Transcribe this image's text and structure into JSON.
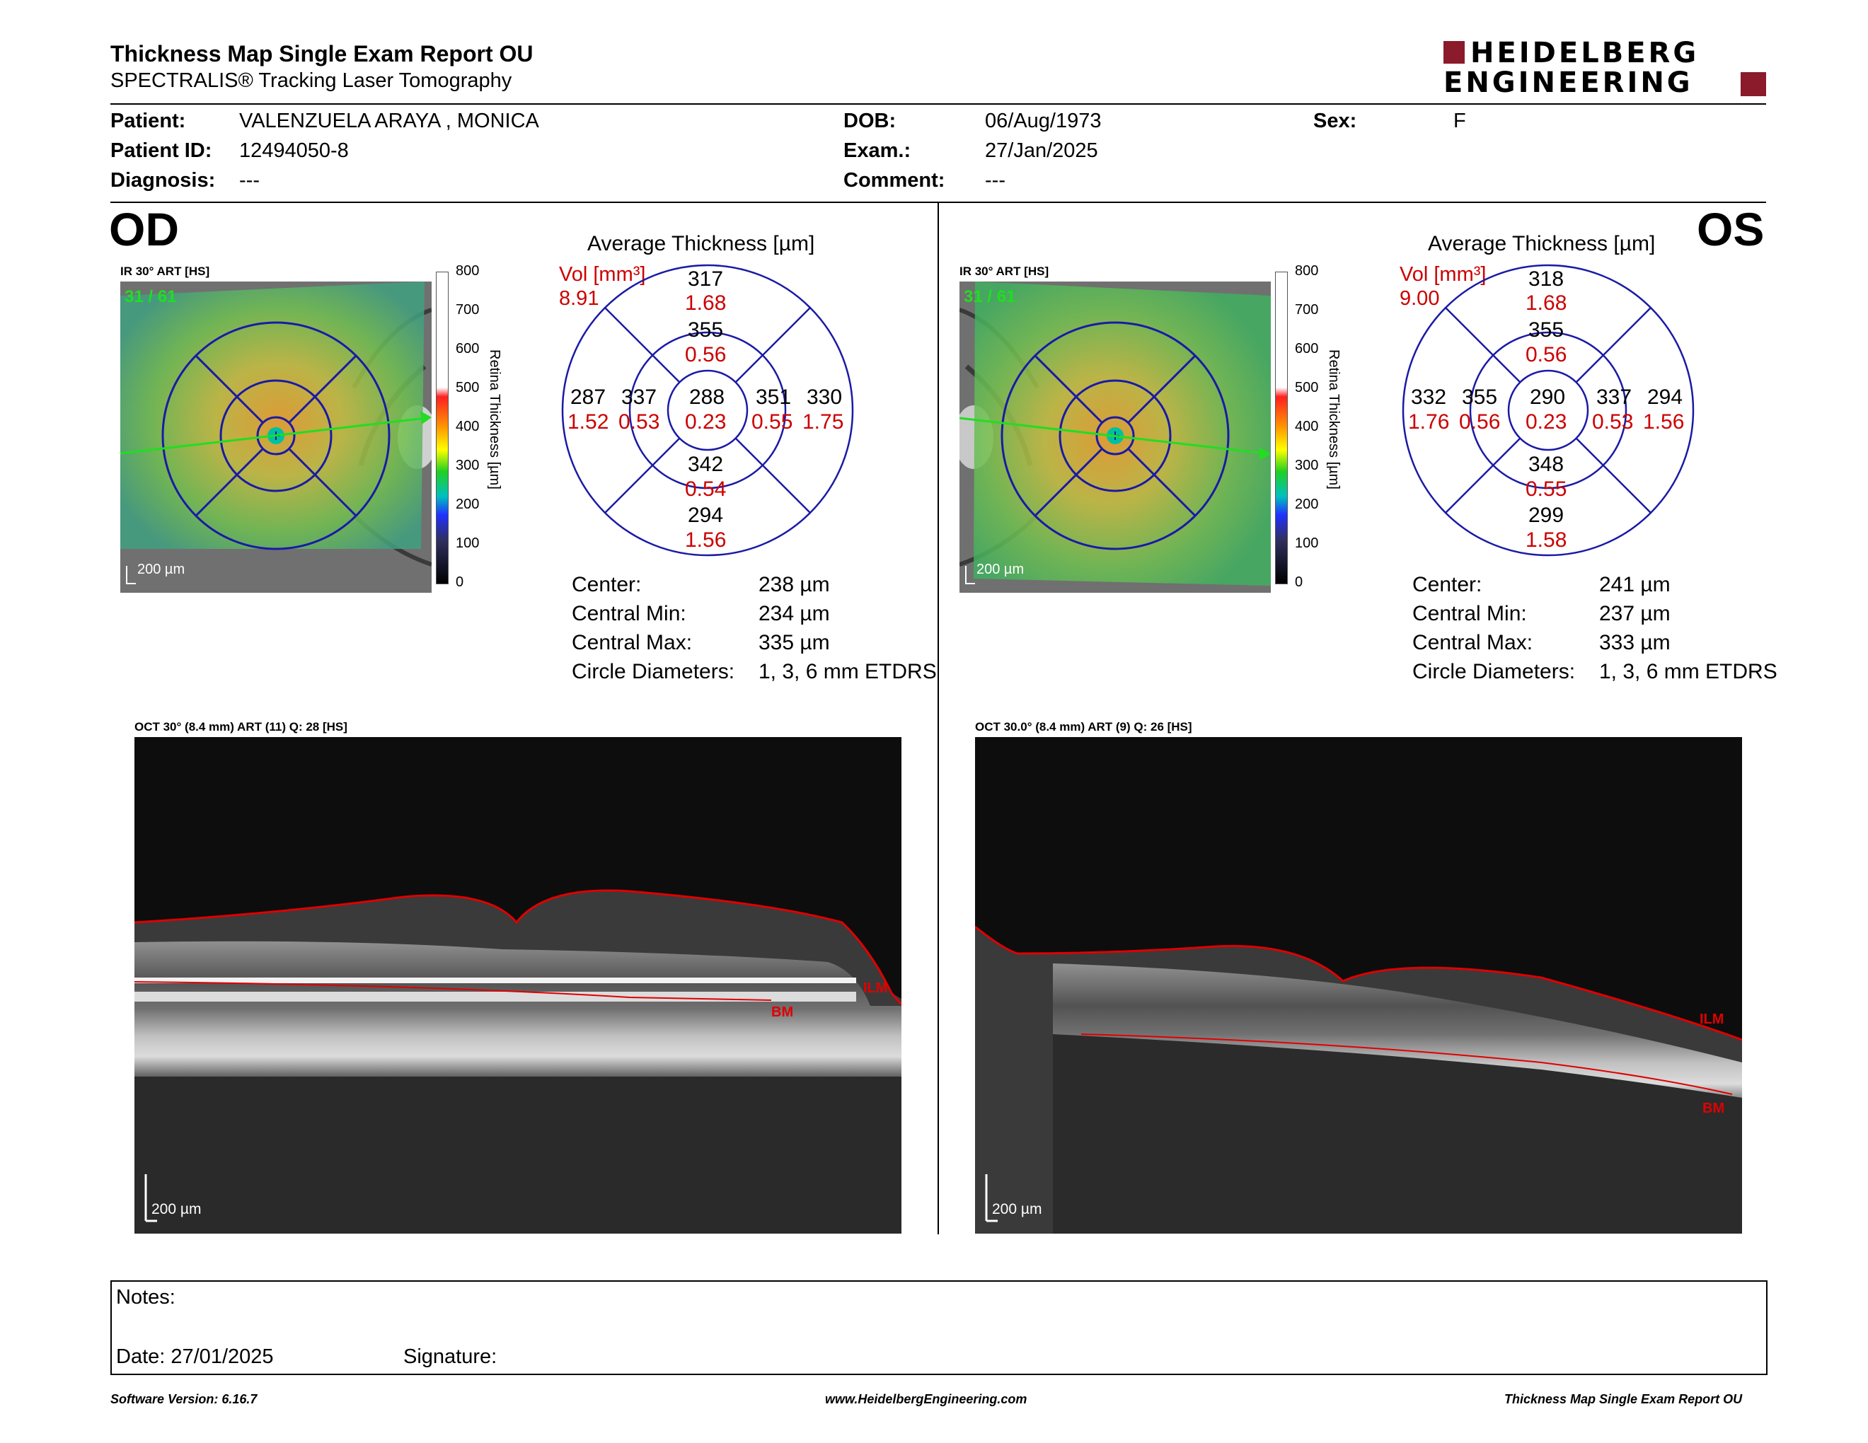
{
  "header": {
    "title": "Thickness Map Single Exam Report OU",
    "subtitle": "SPECTRALIS® Tracking Laser Tomography",
    "logo_line1": "HEIDELBERG",
    "logo_line2": "ENGINEERING"
  },
  "patient": {
    "patient_label": "Patient:",
    "patient_value": "VALENZUELA ARAYA , MONICA",
    "id_label": "Patient ID:",
    "id_value": "12494050-8",
    "diagnosis_label": "Diagnosis:",
    "diagnosis_value": "---",
    "dob_label": "DOB:",
    "dob_value": "06/Aug/1973",
    "exam_label": "Exam.:",
    "exam_value": "27/Jan/2025",
    "comment_label": "Comment:",
    "comment_value": "---",
    "sex_label": "Sex:",
    "sex_value": "F"
  },
  "colorbar": {
    "ticks": [
      "800",
      "700",
      "600",
      "500",
      "400",
      "300",
      "200",
      "100",
      "0"
    ],
    "title": "Retina  Thickness [µm]"
  },
  "od": {
    "eye_label": "OD",
    "ir_label": "IR 30° ART [HS]",
    "ir_counter": "31 / 61",
    "scale_label": "200 µm",
    "avg_title": "Average Thickness [µm]",
    "vol_label": "Vol [mm³]",
    "vol_value": "8.91",
    "sectors": {
      "outer_top": {
        "thk": "317",
        "vol": "1.68"
      },
      "inner_top": {
        "thk": "355",
        "vol": "0.56"
      },
      "outer_left": {
        "thk": "287",
        "vol": "1.52"
      },
      "inner_left": {
        "thk": "337",
        "vol": "0.53"
      },
      "center": {
        "thk": "288",
        "vol": "0.23"
      },
      "inner_right": {
        "thk": "351",
        "vol": "0.55"
      },
      "outer_right": {
        "thk": "330",
        "vol": "1.75"
      },
      "inner_bottom": {
        "thk": "342",
        "vol": "0.54"
      },
      "outer_bottom": {
        "thk": "294",
        "vol": "1.56"
      }
    },
    "stats": {
      "center_label": "Center:",
      "center_value": "238 µm",
      "cmin_label": "Central Min:",
      "cmin_value": "234 µm",
      "cmax_label": "Central Max:",
      "cmax_value": "335 µm",
      "diam_label": "Circle Diameters:",
      "diam_value": "1, 3, 6 mm ETDRS"
    },
    "oct_label": "OCT 30° (8.4 mm) ART (11) Q: 28 [HS]",
    "oct_scale": "200 µm",
    "ilm_label": "ILM",
    "bm_label": "BM"
  },
  "os": {
    "eye_label": "OS",
    "ir_label": "IR 30° ART [HS]",
    "ir_counter": "31 / 61",
    "scale_label": "200 µm",
    "avg_title": "Average Thickness [µm]",
    "vol_label": "Vol [mm³]",
    "vol_value": "9.00",
    "sectors": {
      "outer_top": {
        "thk": "318",
        "vol": "1.68"
      },
      "inner_top": {
        "thk": "355",
        "vol": "0.56"
      },
      "outer_left": {
        "thk": "332",
        "vol": "1.76"
      },
      "inner_left": {
        "thk": "355",
        "vol": "0.56"
      },
      "center": {
        "thk": "290",
        "vol": "0.23"
      },
      "inner_right": {
        "thk": "337",
        "vol": "0.53"
      },
      "outer_right": {
        "thk": "294",
        "vol": "1.56"
      },
      "inner_bottom": {
        "thk": "348",
        "vol": "0.55"
      },
      "outer_bottom": {
        "thk": "299",
        "vol": "1.58"
      }
    },
    "stats": {
      "center_label": "Center:",
      "center_value": "241 µm",
      "cmin_label": "Central Min:",
      "cmin_value": "237 µm",
      "cmax_label": "Central Max:",
      "cmax_value": "333 µm",
      "diam_label": "Circle Diameters:",
      "diam_value": "1, 3, 6 mm ETDRS"
    },
    "oct_label": "OCT 30.0° (8.4 mm) ART (9) Q: 26 [HS]",
    "oct_scale": "200 µm",
    "ilm_label": "ILM",
    "bm_label": "BM"
  },
  "notes": {
    "notes_label": "Notes:",
    "date_label": "Date: 27/01/2025",
    "signature_label": "Signature:"
  },
  "footer": {
    "software": "Software Version: 6.16.7",
    "website": "www.HeidelbergEngineering.com",
    "report": "Thickness Map Single Exam Report OU"
  },
  "colors": {
    "volume_red": "#cc0000",
    "etdrs_blue": "#1a1aa6",
    "logo_red": "#8b1a2b",
    "scan_green": "#22dd22"
  }
}
